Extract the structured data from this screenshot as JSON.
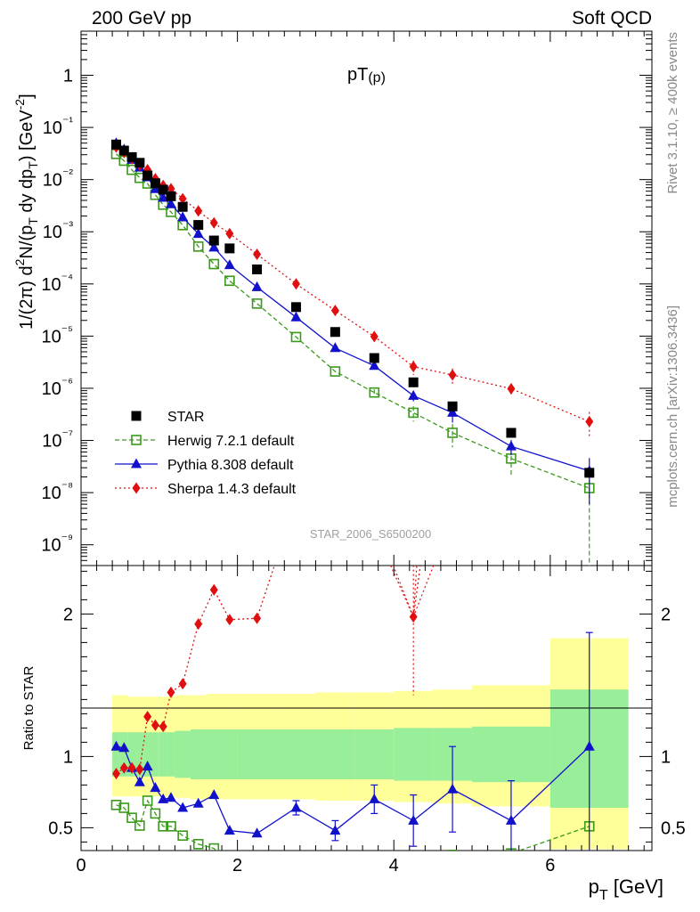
{
  "header": {
    "left": "200 GeV pp",
    "right": "Soft QCD"
  },
  "side": {
    "rivet": "Rivet 3.1.10, ≥ 400k events",
    "mcplots": "mcplots.cern.ch [arXiv:1306.3436]"
  },
  "chart_data": {
    "type": "scatter",
    "title": "pT(p)",
    "title_main": "pT",
    "title_sub": "(p)",
    "watermark": "STAR_2006_S6500200",
    "xlabel_main": "p",
    "xlabel_sub": "T",
    "xlabel_unit": " [GeV]",
    "ylabel": "1/(2π) d²N/(p_T dy dp_T) [GeV⁻²]",
    "ylabel_parts": [
      "1/(2",
      "π",
      ") d",
      "2",
      "N/(p",
      "T",
      " dy dp",
      "T",
      ") [GeV",
      "-2",
      "]"
    ],
    "ratio_ylabel": "Ratio to STAR",
    "xlim": [
      0,
      7.3
    ],
    "ylim": [
      4e-10,
      7
    ],
    "ratio_ylim": [
      0.34,
      2.34
    ],
    "x_ticks": [
      "0",
      "2",
      "4",
      "6"
    ],
    "y_ticks": [
      "1",
      "10⁻¹",
      "10⁻²",
      "10⁻³",
      "10⁻⁴",
      "10⁻⁵",
      "10⁻⁶",
      "10⁻⁷",
      "10⁻⁸",
      "10⁻⁹"
    ],
    "ratio_ticks": [
      "0.5",
      "1",
      "2"
    ],
    "x": [
      0.45,
      0.55,
      0.65,
      0.75,
      0.85,
      0.95,
      1.05,
      1.15,
      1.3,
      1.5,
      1.7,
      1.9,
      2.25,
      2.75,
      3.25,
      3.75,
      4.25,
      4.75,
      5.5,
      6.5
    ],
    "bins": [
      [
        0.4,
        0.5
      ],
      [
        0.5,
        0.6
      ],
      [
        0.6,
        0.7
      ],
      [
        0.7,
        0.8
      ],
      [
        0.8,
        0.9
      ],
      [
        0.9,
        1.0
      ],
      [
        1.0,
        1.1
      ],
      [
        1.1,
        1.2
      ],
      [
        1.2,
        1.4
      ],
      [
        1.4,
        1.6
      ],
      [
        1.6,
        1.8
      ],
      [
        1.8,
        2.0
      ],
      [
        2.0,
        2.5
      ],
      [
        2.5,
        3.0
      ],
      [
        3.0,
        3.5
      ],
      [
        3.5,
        4.0
      ],
      [
        4.0,
        4.5
      ],
      [
        4.5,
        5.0
      ],
      [
        5.0,
        6.0
      ],
      [
        6.0,
        7.0
      ]
    ],
    "band_inner": [
      [
        0.86,
        1.17
      ],
      [
        0.86,
        1.17
      ],
      [
        0.86,
        1.17
      ],
      [
        0.86,
        1.17
      ],
      [
        0.86,
        1.17
      ],
      [
        0.86,
        1.17
      ],
      [
        0.86,
        1.17
      ],
      [
        0.86,
        1.17
      ],
      [
        0.85,
        1.18
      ],
      [
        0.84,
        1.19
      ],
      [
        0.84,
        1.19
      ],
      [
        0.84,
        1.19
      ],
      [
        0.84,
        1.19
      ],
      [
        0.84,
        1.19
      ],
      [
        0.84,
        1.19
      ],
      [
        0.84,
        1.19
      ],
      [
        0.83,
        1.2
      ],
      [
        0.83,
        1.2
      ],
      [
        0.82,
        1.21
      ],
      [
        0.64,
        1.47
      ]
    ],
    "band_outer": [
      [
        0.72,
        1.43
      ],
      [
        0.72,
        1.43
      ],
      [
        0.72,
        1.42
      ],
      [
        0.72,
        1.42
      ],
      [
        0.72,
        1.42
      ],
      [
        0.72,
        1.42
      ],
      [
        0.72,
        1.42
      ],
      [
        0.72,
        1.42
      ],
      [
        0.71,
        1.43
      ],
      [
        0.7,
        1.43
      ],
      [
        0.7,
        1.44
      ],
      [
        0.7,
        1.44
      ],
      [
        0.7,
        1.44
      ],
      [
        0.7,
        1.44
      ],
      [
        0.69,
        1.45
      ],
      [
        0.69,
        1.45
      ],
      [
        0.68,
        1.46
      ],
      [
        0.67,
        1.47
      ],
      [
        0.65,
        1.5
      ],
      [
        0.35,
        1.83
      ]
    ],
    "series": [
      {
        "name": "STAR",
        "color": "#000000",
        "marker": "square",
        "values": [
          0.047,
          0.036,
          0.027,
          0.021,
          0.012,
          0.0085,
          0.0064,
          0.0048,
          0.003,
          0.00135,
          0.00068,
          0.00048,
          0.00019,
          3.6e-05,
          1.2e-05,
          3.8e-06,
          1.3e-06,
          4.5e-07,
          1.4e-07,
          2.4e-08
        ]
      },
      {
        "name": "Herwig 7.2.1 default",
        "color": "#3a9a1a",
        "marker": "open-square",
        "line": "dashed",
        "values": [
          0.031,
          0.023,
          0.0154,
          0.0108,
          0.0084,
          0.0051,
          0.0033,
          0.0024,
          0.00134,
          0.00052,
          0.00024,
          0.000115,
          4.2e-05,
          9.6e-06,
          2.1e-06,
          8.3e-07,
          3.4e-07,
          1.4e-07,
          4.5e-08,
          1.22e-08
        ],
        "errors": [
          0,
          0,
          0,
          0,
          0,
          0,
          0,
          0,
          0,
          0,
          0,
          0,
          0,
          0,
          0,
          1.2e-07,
          1.1e-07,
          6.6e-08,
          2.4e-08,
          1.21e-08
        ],
        "ratio": [
          0.66,
          0.64,
          0.57,
          0.515,
          0.69,
          0.6,
          0.51,
          0.51,
          0.445,
          0.385,
          0.355,
          0.24,
          0.22,
          0.27,
          0.175,
          0.22,
          0.26,
          0.31,
          0.32,
          0.51
        ]
      },
      {
        "name": "Pythia 8.308 default",
        "color": "#1111cc",
        "marker": "triangle",
        "line": "solid",
        "values": [
          0.05,
          0.038,
          0.024,
          0.017,
          0.0111,
          0.0066,
          0.0045,
          0.0034,
          0.0019,
          0.00091,
          0.0005,
          0.00023,
          8.7e-05,
          2.3e-05,
          5.9e-06,
          2.7e-06,
          7.2e-07,
          3.4e-07,
          7.7e-08,
          2.6e-08
        ],
        "errors": [
          0,
          0,
          0,
          0,
          0,
          0,
          0,
          0,
          0,
          0,
          0,
          0,
          0,
          0,
          0,
          3e-07,
          1.6e-07,
          1.2e-07,
          2.5e-08,
          2e-08
        ],
        "ratio": [
          1.07,
          1.06,
          0.92,
          0.82,
          0.93,
          0.78,
          0.7,
          0.71,
          0.64,
          0.67,
          0.73,
          0.48,
          0.46,
          0.64,
          0.48,
          0.7,
          0.55,
          0.77,
          0.55,
          1.07
        ],
        "ratio_err": [
          0,
          0,
          0,
          0,
          0,
          0,
          0,
          0,
          0,
          0,
          0,
          0,
          0,
          0.05,
          0.07,
          0.1,
          0.18,
          0.3,
          0.28,
          0.8
        ]
      },
      {
        "name": "Sherpa 1.4.3 default",
        "color": "#e01010",
        "marker": "diamond",
        "line": "dotted",
        "values": [
          0.042,
          0.033,
          0.025,
          0.019,
          0.0155,
          0.0104,
          0.0077,
          0.0067,
          0.0043,
          0.0025,
          0.00148,
          0.00092,
          0.00037,
          0.0001,
          3.1e-05,
          9.8e-06,
          2.6e-06,
          1.8e-06,
          9.8e-07,
          2.3e-07
        ],
        "errors": [
          0,
          0,
          0,
          0,
          0,
          0,
          0,
          0,
          0,
          0,
          0,
          0,
          0,
          0,
          0,
          0,
          8e-07,
          6e-07,
          2.5e-07,
          1.2e-07
        ],
        "ratio": [
          0.88,
          0.92,
          0.92,
          0.91,
          1.28,
          1.22,
          1.21,
          1.45,
          1.51,
          1.93,
          2.17,
          1.96,
          1.97,
          2.8,
          2.6,
          2.6,
          1.98,
          4.0,
          7.0,
          9.6
        ],
        "ratio_err": [
          0,
          0,
          0,
          0,
          0,
          0,
          0,
          0,
          0,
          0,
          0,
          0,
          0,
          0,
          0,
          0,
          0.55,
          0,
          0,
          0
        ]
      }
    ],
    "legend": [
      "STAR",
      "Herwig 7.2.1 default",
      "Pythia 8.308 default",
      "Sherpa 1.4.3 default"
    ],
    "legend_position": "bottom-left"
  }
}
